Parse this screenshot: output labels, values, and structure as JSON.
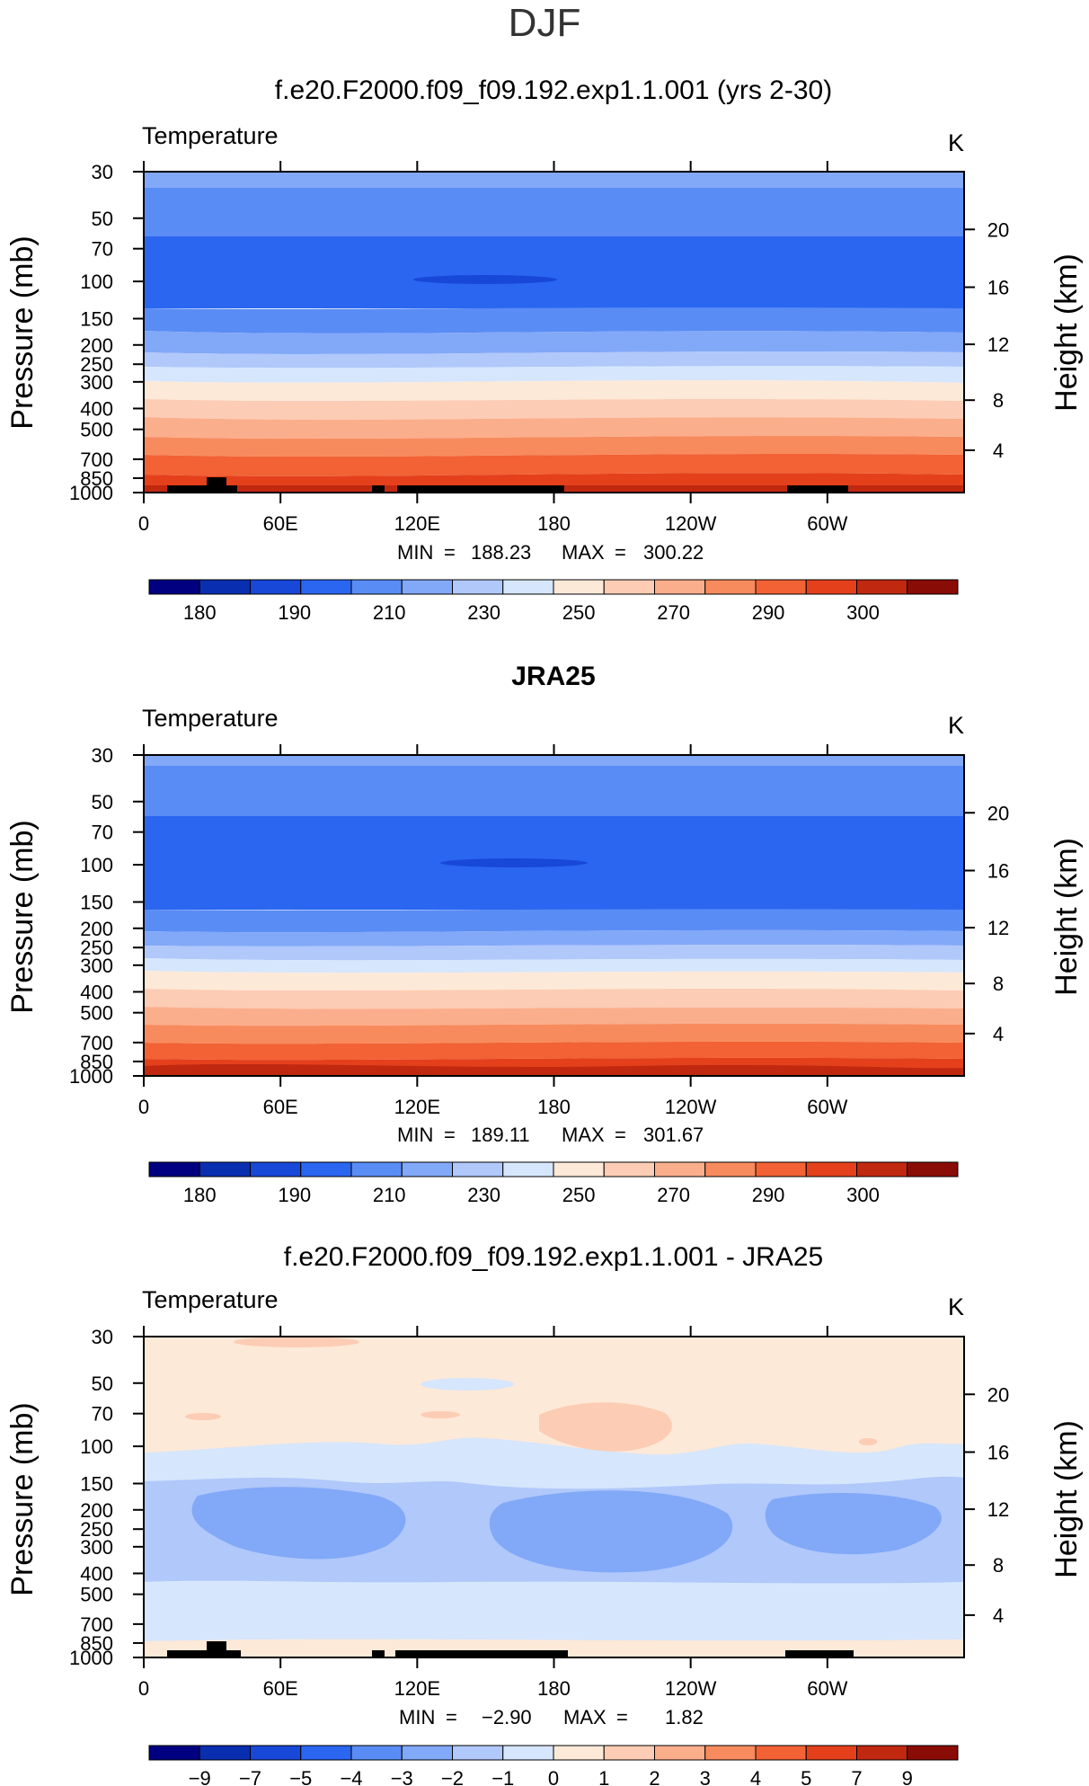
{
  "figure": {
    "title": "DJF"
  },
  "colorbars": [
    {
      "colors": [
        "#000080",
        "#0a2eb0",
        "#1848d8",
        "#2a66f0",
        "#5a8cf5",
        "#82a8f8",
        "#b0c8fa",
        "#d6e6fc",
        "#fde9d8",
        "#fcccb4",
        "#fbae8c",
        "#f78b5e",
        "#f26234",
        "#e4401c",
        "#c02810",
        "#8a0c06"
      ],
      "labels": [
        "180",
        "190",
        "210",
        "230",
        "250",
        "270",
        "290",
        "300"
      ]
    },
    {
      "colors": [
        "#000080",
        "#0a2eb0",
        "#1848d8",
        "#2a66f0",
        "#5a8cf5",
        "#82a8f8",
        "#b0c8fa",
        "#d6e6fc",
        "#fde9d8",
        "#fcccb4",
        "#fbae8c",
        "#f78b5e",
        "#f26234",
        "#e4401c",
        "#c02810",
        "#8a0c06"
      ],
      "labels": [
        "−9",
        "−7",
        "−5",
        "−4",
        "−3",
        "−2",
        "−1",
        "0",
        "1",
        "2",
        "3",
        "4",
        "5",
        "7",
        "9"
      ]
    }
  ],
  "chart_data": [
    {
      "type": "heatmap",
      "title": "f.e20.F2000.f09_f09.192.exp1.1.001 (yrs 2-30)",
      "variable_label": "Temperature",
      "units_label": "K",
      "ylabel": "Pressure  (mb)",
      "ylabel_right": "Height  (km)",
      "x_ticks": [
        "0",
        "60E",
        "120E",
        "180",
        "120W",
        "60W"
      ],
      "y_ticks": [
        "30",
        "50",
        "70",
        "100",
        "150",
        "200",
        "250",
        "300",
        "400",
        "500",
        "700",
        "850",
        "1000"
      ],
      "y_right_ticks": [
        "20",
        "16",
        "12",
        "8",
        "4"
      ],
      "min_label": "MIN",
      "min_value": "188.23",
      "max_label": "MAX",
      "max_value": "300.22",
      "levels": [
        180,
        190,
        210,
        230,
        250,
        270,
        290,
        300
      ]
    },
    {
      "type": "heatmap",
      "title": "JRA25",
      "variable_label": "Temperature",
      "units_label": "K",
      "ylabel": "Pressure  (mb)",
      "ylabel_right": "Height  (km)",
      "x_ticks": [
        "0",
        "60E",
        "120E",
        "180",
        "120W",
        "60W"
      ],
      "y_ticks": [
        "30",
        "50",
        "70",
        "100",
        "150",
        "200",
        "250",
        "300",
        "400",
        "500",
        "700",
        "850",
        "1000"
      ],
      "y_right_ticks": [
        "20",
        "16",
        "12",
        "8",
        "4"
      ],
      "min_label": "MIN",
      "min_value": "189.11",
      "max_label": "MAX",
      "max_value": "301.67",
      "levels": [
        180,
        190,
        210,
        230,
        250,
        270,
        290,
        300
      ]
    },
    {
      "type": "heatmap",
      "title": "f.e20.F2000.f09_f09.192.exp1.1.001 - JRA25",
      "variable_label": "Temperature",
      "units_label": "K",
      "ylabel": "Pressure  (mb)",
      "ylabel_right": "Height  (km)",
      "x_ticks": [
        "0",
        "60E",
        "120E",
        "180",
        "120W",
        "60W"
      ],
      "y_ticks": [
        "30",
        "50",
        "70",
        "100",
        "150",
        "200",
        "250",
        "300",
        "400",
        "500",
        "700",
        "850",
        "1000"
      ],
      "y_right_ticks": [
        "20",
        "16",
        "12",
        "8",
        "4"
      ],
      "min_label": "MIN",
      "min_value": "−2.90",
      "max_label": "MAX",
      "max_value": "1.82",
      "levels": [
        -9,
        -7,
        -5,
        -4,
        -3,
        -2,
        -1,
        0,
        1,
        2,
        3,
        4,
        5,
        7,
        9
      ]
    }
  ]
}
